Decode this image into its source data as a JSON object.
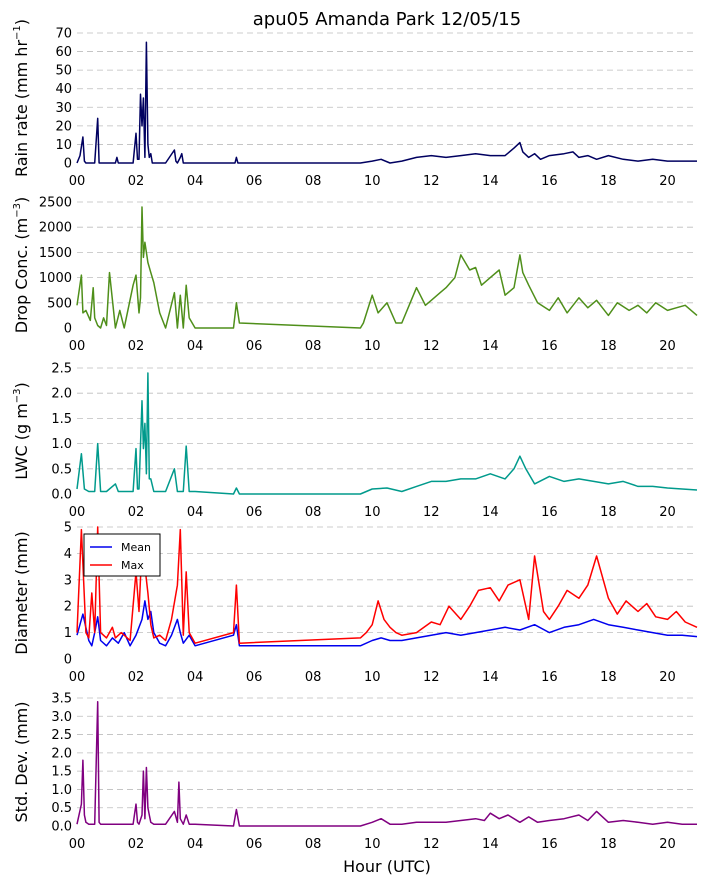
{
  "title": "apu05 Amanda Park 12/05/15",
  "xlabel": "Hour (UTC)",
  "colors": {
    "rain": "#000060",
    "conc": "#4f8f1a",
    "lwc": "#009a8c",
    "mean": "#0000ee",
    "max": "#ff0000",
    "std": "#800080",
    "grid": "#bdbdbd"
  },
  "chart_data": [
    {
      "type": "line",
      "ylabel": "Rain rate (mm hr",
      "ylabel_sup": "−1",
      "ylabel_end": ")",
      "xlim": [
        0,
        21
      ],
      "ylim": [
        0,
        70
      ],
      "yticks": [
        0,
        10,
        20,
        30,
        40,
        50,
        60,
        70
      ],
      "ytick_labels": [
        "0",
        "10",
        "20",
        "30",
        "40",
        "50",
        "60",
        "70"
      ],
      "xticks": [
        0,
        2,
        4,
        6,
        8,
        10,
        12,
        14,
        16,
        18,
        20
      ],
      "xtick_labels": [
        "00",
        "02",
        "04",
        "06",
        "08",
        "10",
        "12",
        "14",
        "16",
        "18",
        "20"
      ],
      "grid": "y-dashed",
      "series": [
        {
          "color_key": "rain",
          "x": [
            0,
            0.1,
            0.2,
            0.25,
            0.3,
            0.4,
            0.6,
            0.7,
            0.75,
            0.8,
            1.0,
            1.3,
            1.35,
            1.4,
            1.9,
            2.0,
            2.05,
            2.1,
            2.15,
            2.2,
            2.25,
            2.3,
            2.35,
            2.4,
            2.45,
            2.5,
            2.55,
            2.6,
            3.0,
            3.3,
            3.35,
            3.4,
            3.5,
            3.55,
            3.6,
            3.7,
            4.0,
            5.35,
            5.4,
            5.45,
            6.0,
            9.6,
            10.0,
            10.3,
            10.6,
            11.0,
            11.5,
            12.0,
            12.5,
            13.0,
            13.5,
            14.0,
            14.5,
            14.8,
            15.0,
            15.1,
            15.3,
            15.5,
            15.7,
            16.0,
            16.5,
            16.8,
            17.0,
            17.3,
            17.6,
            18.0,
            18.5,
            19.0,
            19.5,
            20.0,
            20.5,
            21.0
          ],
          "y": [
            0,
            4,
            14,
            1,
            0,
            0,
            0,
            24,
            0,
            0,
            0,
            0,
            3,
            0,
            0,
            16,
            2,
            2,
            37,
            20,
            35,
            3,
            65,
            10,
            3,
            5,
            0,
            0,
            0,
            7,
            1,
            0,
            3,
            5,
            0,
            0,
            0,
            0,
            3,
            0,
            0,
            0,
            1,
            2,
            0,
            1,
            3,
            4,
            3,
            4,
            5,
            4,
            4,
            8,
            11,
            6,
            3,
            5,
            2,
            4,
            5,
            6,
            3,
            4,
            2,
            4,
            2,
            1,
            2,
            1,
            1,
            1
          ]
        }
      ]
    },
    {
      "type": "line",
      "ylabel": "Drop Conc. (m",
      "ylabel_sup": "−3",
      "ylabel_end": ")",
      "xlim": [
        0,
        21
      ],
      "ylim": [
        0,
        2500
      ],
      "yticks": [
        0,
        500,
        1000,
        1500,
        2000,
        2500
      ],
      "ytick_labels": [
        "0",
        "500",
        "1000",
        "1500",
        "2000",
        "2500"
      ],
      "xticks": [
        0,
        2,
        4,
        6,
        8,
        10,
        12,
        14,
        16,
        18,
        20
      ],
      "xtick_labels": [
        "00",
        "02",
        "04",
        "06",
        "08",
        "10",
        "12",
        "14",
        "16",
        "18",
        "20"
      ],
      "grid": "y-dashed",
      "series": [
        {
          "color_key": "conc",
          "x": [
            0,
            0.15,
            0.2,
            0.3,
            0.45,
            0.55,
            0.6,
            0.7,
            0.8,
            0.9,
            1.0,
            1.1,
            1.3,
            1.45,
            1.6,
            1.9,
            2.0,
            2.1,
            2.15,
            2.2,
            2.25,
            2.3,
            2.4,
            2.5,
            2.6,
            2.8,
            3.0,
            3.3,
            3.4,
            3.5,
            3.6,
            3.7,
            3.8,
            4.0,
            5.3,
            5.4,
            5.5,
            9.6,
            9.7,
            10.0,
            10.2,
            10.5,
            10.8,
            11.0,
            11.5,
            11.8,
            12.0,
            12.3,
            12.5,
            12.8,
            13.0,
            13.3,
            13.5,
            13.7,
            14.0,
            14.3,
            14.5,
            14.8,
            15.0,
            15.1,
            15.3,
            15.6,
            16.0,
            16.3,
            16.6,
            17.0,
            17.3,
            17.6,
            18.0,
            18.3,
            18.7,
            19.0,
            19.3,
            19.6,
            20.0,
            20.3,
            20.6,
            21.0
          ],
          "y": [
            450,
            1050,
            300,
            350,
            150,
            800,
            200,
            50,
            0,
            200,
            50,
            1100,
            0,
            350,
            0,
            850,
            1050,
            300,
            600,
            2400,
            1400,
            1700,
            1300,
            1100,
            900,
            300,
            0,
            700,
            0,
            650,
            0,
            850,
            200,
            0,
            0,
            500,
            100,
            0,
            100,
            650,
            300,
            500,
            100,
            100,
            800,
            450,
            550,
            700,
            800,
            1000,
            1450,
            1150,
            1200,
            850,
            1000,
            1150,
            650,
            800,
            1450,
            1100,
            850,
            500,
            350,
            600,
            300,
            600,
            400,
            550,
            250,
            500,
            350,
            450,
            300,
            500,
            350,
            400,
            450,
            250
          ]
        }
      ]
    },
    {
      "type": "line",
      "ylabel": "LWC (g m",
      "ylabel_sup": "−3",
      "ylabel_end": ")",
      "xlim": [
        0,
        21
      ],
      "ylim": [
        0,
        2.5
      ],
      "yticks": [
        0,
        0.5,
        1.0,
        1.5,
        2.0,
        2.5
      ],
      "ytick_labels": [
        "0.0",
        "0.5",
        "1.0",
        "1.5",
        "2.0",
        "2.5"
      ],
      "xticks": [
        0,
        2,
        4,
        6,
        8,
        10,
        12,
        14,
        16,
        18,
        20
      ],
      "xtick_labels": [
        "00",
        "02",
        "04",
        "06",
        "08",
        "10",
        "12",
        "14",
        "16",
        "18",
        "20"
      ],
      "grid": "y-dashed",
      "series": [
        {
          "color_key": "lwc",
          "x": [
            0,
            0.15,
            0.25,
            0.4,
            0.6,
            0.7,
            0.8,
            1.0,
            1.3,
            1.4,
            1.9,
            2.0,
            2.05,
            2.1,
            2.2,
            2.25,
            2.3,
            2.35,
            2.4,
            2.45,
            2.5,
            2.6,
            3.0,
            3.3,
            3.4,
            3.5,
            3.6,
            3.7,
            3.8,
            4.0,
            5.3,
            5.4,
            5.5,
            9.6,
            10.0,
            10.5,
            11.0,
            11.5,
            12.0,
            12.5,
            13.0,
            13.5,
            14.0,
            14.5,
            14.8,
            15.0,
            15.2,
            15.5,
            16.0,
            16.5,
            17.0,
            17.5,
            18.0,
            18.5,
            19.0,
            19.5,
            20.0,
            20.5,
            21.0
          ],
          "y": [
            0.1,
            0.8,
            0.1,
            0.05,
            0.05,
            1.0,
            0.05,
            0.05,
            0.2,
            0.05,
            0.05,
            0.9,
            0.1,
            0.1,
            1.85,
            0.9,
            1.4,
            0.4,
            2.4,
            0.3,
            0.3,
            0.05,
            0.05,
            0.5,
            0.05,
            0.05,
            0.05,
            0.95,
            0.05,
            0.05,
            0.0,
            0.12,
            0.0,
            0.0,
            0.1,
            0.12,
            0.05,
            0.15,
            0.25,
            0.25,
            0.3,
            0.3,
            0.4,
            0.3,
            0.5,
            0.75,
            0.5,
            0.2,
            0.35,
            0.25,
            0.3,
            0.25,
            0.2,
            0.25,
            0.15,
            0.15,
            0.12,
            0.1,
            0.08
          ]
        }
      ]
    },
    {
      "type": "line",
      "ylabel": "Diameter (mm)",
      "ylabel_sup": "",
      "ylabel_end": "",
      "xlim": [
        0,
        21
      ],
      "ylim": [
        0,
        5
      ],
      "yticks": [
        0,
        1,
        2,
        3,
        4,
        5
      ],
      "ytick_labels": [
        "0",
        "1",
        "2",
        "3",
        "4",
        "5"
      ],
      "xticks": [
        0,
        2,
        4,
        6,
        8,
        10,
        12,
        14,
        16,
        18,
        20
      ],
      "xtick_labels": [
        "00",
        "02",
        "04",
        "06",
        "08",
        "10",
        "12",
        "14",
        "16",
        "18",
        "20"
      ],
      "grid": "y-dashed",
      "legend": {
        "placement": "upper-left",
        "entries": [
          "Mean",
          "Max"
        ]
      },
      "series": [
        {
          "name": "Mean",
          "color_key": "mean",
          "x": [
            0,
            0.2,
            0.4,
            0.5,
            0.6,
            0.7,
            0.8,
            1.0,
            1.2,
            1.4,
            1.6,
            1.8,
            2.0,
            2.2,
            2.3,
            2.4,
            2.5,
            2.6,
            2.8,
            3.0,
            3.2,
            3.4,
            3.5,
            3.6,
            3.8,
            4.0,
            5.3,
            5.4,
            5.5,
            9.6,
            10.0,
            10.3,
            10.6,
            11.0,
            11.5,
            12.0,
            12.5,
            13.0,
            13.5,
            14.0,
            14.5,
            15.0,
            15.5,
            16.0,
            16.5,
            17.0,
            17.5,
            18.0,
            18.5,
            19.0,
            19.5,
            20.0,
            20.5,
            21.0
          ],
          "y": [
            0.9,
            1.7,
            0.7,
            0.5,
            1.0,
            1.6,
            0.7,
            0.5,
            0.8,
            0.6,
            1.0,
            0.5,
            0.9,
            1.5,
            2.2,
            1.5,
            1.8,
            1.0,
            0.6,
            0.5,
            0.9,
            1.5,
            1.0,
            0.6,
            0.9,
            0.5,
            0.9,
            1.3,
            0.5,
            0.5,
            0.7,
            0.8,
            0.7,
            0.7,
            0.8,
            0.9,
            1.0,
            0.9,
            1.0,
            1.1,
            1.2,
            1.1,
            1.3,
            1.0,
            1.2,
            1.3,
            1.5,
            1.3,
            1.2,
            1.1,
            1.0,
            0.9,
            0.9,
            0.85
          ]
        },
        {
          "name": "Max",
          "color_key": "max",
          "x": [
            0,
            0.15,
            0.3,
            0.4,
            0.5,
            0.6,
            0.7,
            0.8,
            1.0,
            1.2,
            1.3,
            1.5,
            1.8,
            2.0,
            2.1,
            2.2,
            2.3,
            2.4,
            2.5,
            2.6,
            2.8,
            3.0,
            3.2,
            3.4,
            3.5,
            3.6,
            3.7,
            3.8,
            4.0,
            5.3,
            5.4,
            5.5,
            9.6,
            9.8,
            10.0,
            10.2,
            10.4,
            10.6,
            10.8,
            11.0,
            11.5,
            12.0,
            12.3,
            12.6,
            13.0,
            13.3,
            13.6,
            14.0,
            14.3,
            14.6,
            15.0,
            15.3,
            15.5,
            15.8,
            16.0,
            16.3,
            16.6,
            17.0,
            17.3,
            17.6,
            18.0,
            18.3,
            18.6,
            19.0,
            19.3,
            19.6,
            20.0,
            20.3,
            20.6,
            21.0
          ],
          "y": [
            1.0,
            4.9,
            1.0,
            0.8,
            2.5,
            1.0,
            5.0,
            1.0,
            0.8,
            1.2,
            0.8,
            1.0,
            0.7,
            3.3,
            1.8,
            4.3,
            3.5,
            2.5,
            1.3,
            0.8,
            0.9,
            0.7,
            1.5,
            2.8,
            4.9,
            0.9,
            3.3,
            1.0,
            0.6,
            1.0,
            2.8,
            0.6,
            0.8,
            1.0,
            1.3,
            2.2,
            1.5,
            1.2,
            1.0,
            0.9,
            1.0,
            1.4,
            1.3,
            2.0,
            1.5,
            2.0,
            2.6,
            2.7,
            2.2,
            2.8,
            3.0,
            1.5,
            3.9,
            1.8,
            1.5,
            2.0,
            2.6,
            2.3,
            2.8,
            3.9,
            2.3,
            1.7,
            2.2,
            1.8,
            2.1,
            1.6,
            1.5,
            1.8,
            1.4,
            1.2
          ]
        }
      ]
    },
    {
      "type": "line",
      "ylabel": "Std. Dev. (mm)",
      "ylabel_sup": "",
      "ylabel_end": "",
      "xlim": [
        0,
        21
      ],
      "ylim": [
        0,
        3.5
      ],
      "yticks": [
        0,
        0.5,
        1.0,
        1.5,
        2.0,
        2.5,
        3.0,
        3.5
      ],
      "ytick_labels": [
        "0.0",
        "0.5",
        "1.0",
        "1.5",
        "2.0",
        "2.5",
        "3.0",
        "3.5"
      ],
      "xticks": [
        0,
        2,
        4,
        6,
        8,
        10,
        12,
        14,
        16,
        18,
        20
      ],
      "xtick_labels": [
        "00",
        "02",
        "04",
        "06",
        "08",
        "10",
        "12",
        "14",
        "16",
        "18",
        "20"
      ],
      "grid": "y-dashed",
      "series": [
        {
          "color_key": "std",
          "x": [
            0,
            0.15,
            0.2,
            0.25,
            0.3,
            0.4,
            0.6,
            0.7,
            0.75,
            0.8,
            1.0,
            1.3,
            1.9,
            2.0,
            2.05,
            2.1,
            2.2,
            2.25,
            2.3,
            2.35,
            2.4,
            2.45,
            2.5,
            2.6,
            3.0,
            3.3,
            3.4,
            3.45,
            3.5,
            3.6,
            3.7,
            3.8,
            4.0,
            5.3,
            5.4,
            5.5,
            9.6,
            10.0,
            10.3,
            10.6,
            11.0,
            11.5,
            12.0,
            12.5,
            13.0,
            13.5,
            13.8,
            14.0,
            14.3,
            14.6,
            15.0,
            15.3,
            15.6,
            16.0,
            16.5,
            17.0,
            17.3,
            17.6,
            18.0,
            18.5,
            19.0,
            19.5,
            20.0,
            20.5,
            21.0
          ],
          "y": [
            0.05,
            0.6,
            1.8,
            0.3,
            0.1,
            0.05,
            0.05,
            3.4,
            0.1,
            0.05,
            0.05,
            0.05,
            0.05,
            0.6,
            0.1,
            0.05,
            0.3,
            1.5,
            0.2,
            1.6,
            0.5,
            0.3,
            0.1,
            0.05,
            0.05,
            0.4,
            0.1,
            1.2,
            0.2,
            0.05,
            0.3,
            0.05,
            0.05,
            0.0,
            0.45,
            0.0,
            0.0,
            0.1,
            0.2,
            0.05,
            0.05,
            0.1,
            0.1,
            0.1,
            0.15,
            0.2,
            0.15,
            0.35,
            0.2,
            0.3,
            0.1,
            0.25,
            0.1,
            0.15,
            0.2,
            0.3,
            0.15,
            0.4,
            0.1,
            0.15,
            0.1,
            0.05,
            0.1,
            0.05,
            0.05
          ]
        }
      ]
    }
  ]
}
